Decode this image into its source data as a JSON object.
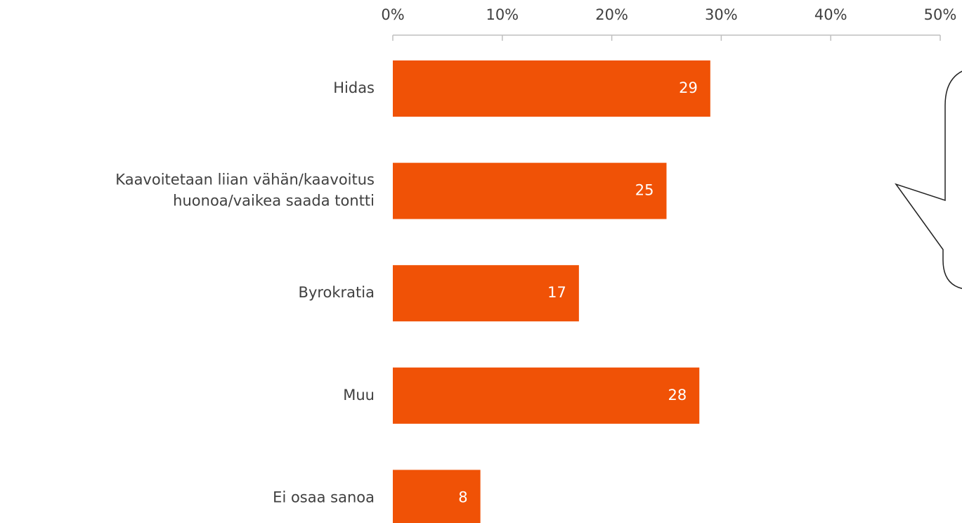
{
  "chart_data": {
    "type": "barh",
    "categories": [
      "Hidas",
      "Kaavoitetaan liian vähän/kaavoitus\nhuonoa/vaikea saada tontti",
      "Byrokratia",
      "Muu",
      "Ei osaa sanoa"
    ],
    "values": [
      29,
      25,
      17,
      28,
      8
    ],
    "color": "#f05206",
    "xlim": [
      0,
      50
    ],
    "xticks": [
      {
        "value": 0,
        "label": "0%"
      },
      {
        "value": 10,
        "label": "10%"
      },
      {
        "value": 20,
        "label": "20%"
      },
      {
        "value": 30,
        "label": "30%"
      },
      {
        "value": 40,
        "label": "40%"
      },
      {
        "value": 50,
        "label": "50%"
      }
    ]
  }
}
